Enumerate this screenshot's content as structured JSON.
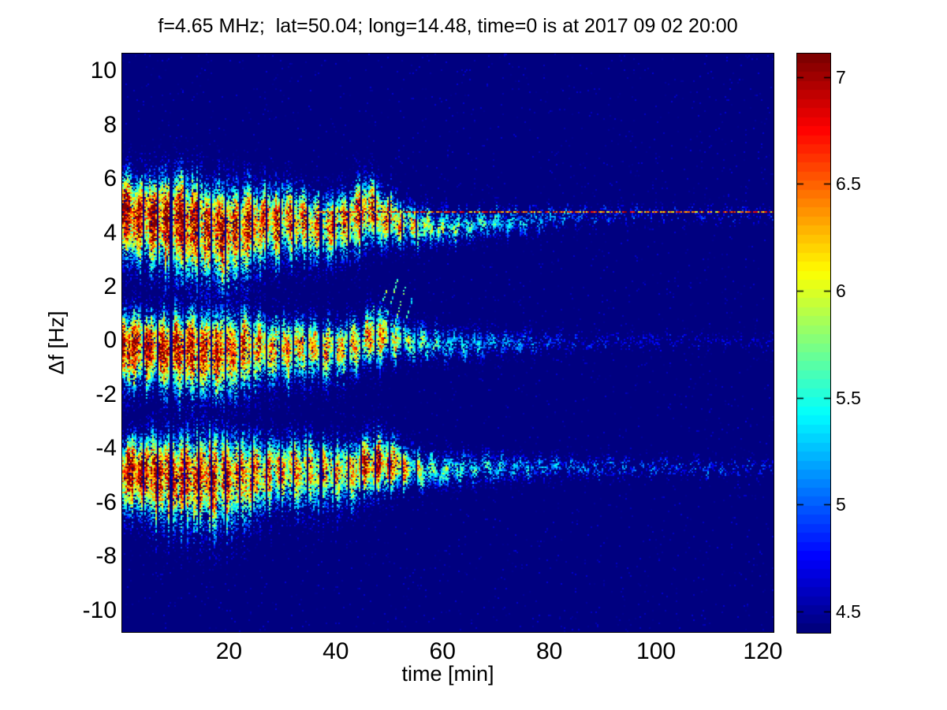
{
  "chart_data": {
    "type": "heatmap",
    "title": "f=4.65 MHz;  lat=50.04; long=14.48, time=0 is at 2017 09 02 20:00",
    "xlabel": "time [min]",
    "ylabel": "Δf [Hz]",
    "xlim": [
      0,
      122
    ],
    "ylim": [
      -10.8,
      10.65
    ],
    "xticks": [
      20,
      40,
      60,
      80,
      100,
      120
    ],
    "yticks": [
      10,
      8,
      6,
      4,
      2,
      0,
      -2,
      -4,
      -6,
      -8,
      -10
    ],
    "grid": false,
    "colormap": "jet",
    "background_level": 4.44,
    "colorbar": {
      "position": "right",
      "cmin": 4.4,
      "cmax": 7.11,
      "ticks": [
        7,
        6.5,
        6,
        5.5,
        5,
        4.5
      ]
    },
    "bands": [
      {
        "name": "upper-doppler-band",
        "t": [
          0,
          8,
          14,
          20,
          26,
          32,
          38,
          43,
          46,
          49,
          53,
          58,
          64,
          72,
          80,
          90,
          105,
          122
        ],
        "center_hz": [
          4.75,
          4.6,
          4.35,
          4.1,
          4.45,
          4.55,
          4.35,
          4.55,
          4.85,
          4.6,
          4.35,
          4.2,
          4.25,
          4.4,
          4.55,
          4.68,
          4.7,
          4.7
        ],
        "halfwidth_hz": [
          1.0,
          1.15,
          1.25,
          1.3,
          1.0,
          0.9,
          0.85,
          0.8,
          1.0,
          0.8,
          0.6,
          0.5,
          0.45,
          0.4,
          0.3,
          0.24,
          0.22,
          0.2
        ],
        "amplitude": [
          1.0,
          1.0,
          0.95,
          0.9,
          0.85,
          0.8,
          0.78,
          0.8,
          0.85,
          0.8,
          0.65,
          0.55,
          0.45,
          0.38,
          0.3,
          0.22,
          0.18,
          0.16
        ]
      },
      {
        "name": "center-doppler-band",
        "t": [
          0,
          8,
          14,
          20,
          26,
          32,
          38,
          44,
          48,
          52,
          57,
          63,
          70,
          80,
          90,
          105,
          122
        ],
        "center_hz": [
          -0.1,
          -0.2,
          -0.3,
          -0.3,
          -0.15,
          -0.2,
          -0.25,
          -0.1,
          0.15,
          0.05,
          -0.1,
          -0.15,
          -0.1,
          -0.05,
          0,
          0,
          0
        ],
        "halfwidth_hz": [
          0.9,
          1.0,
          1.1,
          1.1,
          0.9,
          0.8,
          0.75,
          0.7,
          0.8,
          0.6,
          0.5,
          0.45,
          0.4,
          0.3,
          0.25,
          0.22,
          0.2
        ],
        "amplitude": [
          1.0,
          0.98,
          0.92,
          0.85,
          0.75,
          0.7,
          0.68,
          0.7,
          0.75,
          0.6,
          0.45,
          0.35,
          0.3,
          0.22,
          0.17,
          0.14,
          0.11
        ]
      },
      {
        "name": "lower-doppler-band",
        "t": [
          0,
          8,
          14,
          20,
          26,
          32,
          38,
          44,
          47,
          50,
          54,
          58,
          64,
          72,
          80,
          90,
          105,
          122
        ],
        "center_hz": [
          -4.8,
          -4.9,
          -5.0,
          -5.0,
          -4.85,
          -4.7,
          -4.85,
          -4.75,
          -4.55,
          -4.6,
          -4.75,
          -4.8,
          -4.75,
          -4.7,
          -4.7,
          -4.7,
          -4.7,
          -4.7
        ],
        "halfwidth_hz": [
          0.95,
          1.1,
          1.2,
          1.2,
          1.0,
          0.9,
          0.85,
          0.8,
          0.85,
          0.8,
          0.6,
          0.5,
          0.45,
          0.4,
          0.32,
          0.28,
          0.25,
          0.22
        ],
        "amplitude": [
          1.0,
          1.0,
          0.95,
          0.9,
          0.8,
          0.75,
          0.72,
          0.75,
          0.95,
          0.88,
          0.6,
          0.5,
          0.42,
          0.34,
          0.3,
          0.26,
          0.23,
          0.2
        ]
      }
    ],
    "carrier_line": {
      "freq_hz": 4.8,
      "visible_from_min": 37,
      "dash_on_min": 1.1,
      "dash_off_min": 0.35,
      "level_range": [
        5.9,
        7.1
      ]
    },
    "gap_stripes": {
      "first_min": 3.9,
      "period_min": 2.55,
      "width_min": 0.32,
      "last_min": 57
    },
    "streaks": [
      {
        "t0": 45.5,
        "f0": 0.25,
        "slope_hz_per_min": 0.6,
        "len_min": 2.2
      },
      {
        "t0": 47.3,
        "f0": 0.45,
        "slope_hz_per_min": 0.65,
        "len_min": 2.4
      },
      {
        "t0": 49.1,
        "f0": 0.55,
        "slope_hz_per_min": 0.7,
        "len_min": 2.6
      },
      {
        "t0": 50.9,
        "f0": 0.45,
        "slope_hz_per_min": 0.75,
        "len_min": 2.2
      },
      {
        "t0": 52.6,
        "f0": 0.35,
        "slope_hz_per_min": 0.7,
        "len_min": 1.8
      }
    ],
    "colors": {
      "background_navy": "#00008f",
      "axis_text": "#000000",
      "figure_background": "#ffffff"
    }
  }
}
